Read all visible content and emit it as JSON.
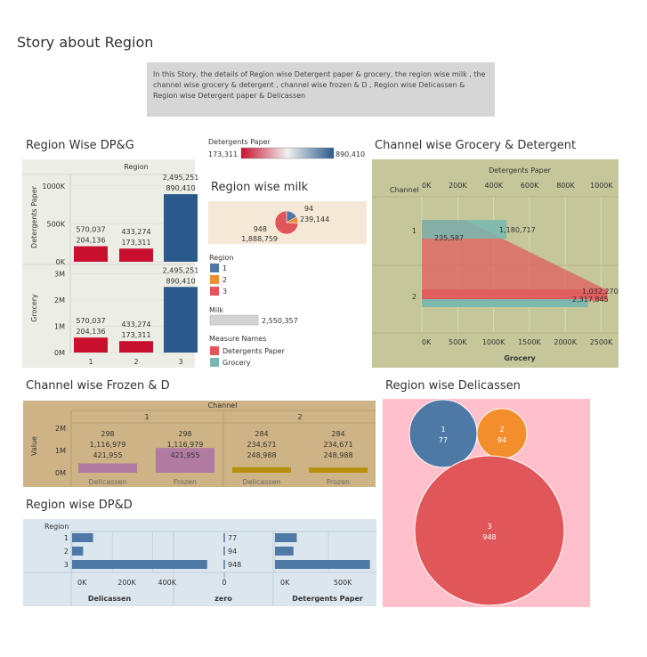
{
  "story": {
    "title": "Story about Region",
    "description": "In this Story,  the details of Region wise Detergent paper & grocery,  the region wise milk , the channel wise grocery & detergent , channel wise frozen & D , Region wise Delicassen &  Region wise Detergent paper & Delicassen"
  },
  "colors": {
    "region1": "#4e79a7",
    "region2": "#f28e2b",
    "region3": "#e15759",
    "grocery": "#76b7b2",
    "frozen": "#b07aa1",
    "bar_gold": "#b8900f",
    "dp_low": "#c8102e",
    "dp_high": "#2a5a8c"
  },
  "dpg": {
    "title": "Region Wise DP&G",
    "header": "Region",
    "chart_data": {
      "type": "bar",
      "categories": [
        "1",
        "2",
        "3"
      ],
      "series": [
        {
          "name": "Detergents Paper",
          "values": [
            204136,
            173311,
            890410
          ],
          "labels": [
            "570,037\n204,136",
            "433,274\n173,311",
            "2,495,251\n890,410"
          ]
        },
        {
          "name": "Grocery",
          "values": [
            570037,
            433274,
            2495251
          ],
          "labels": [
            "570,037\n204,136",
            "433,274\n173,311",
            "2,495,251\n890,410"
          ]
        }
      ],
      "dp_ticks": [
        "0K",
        "500K",
        "1000K"
      ],
      "dp_tick_values": [
        0,
        500000,
        1000000
      ],
      "dp_ylim": [
        0,
        1150000
      ],
      "groc_ticks": [
        "0M",
        "1M",
        "2M",
        "3M"
      ],
      "groc_tick_values": [
        0,
        1000000,
        2000000,
        3000000
      ],
      "groc_ylim": [
        0,
        3250000
      ]
    }
  },
  "dp_legend": {
    "title": "Detergents Paper",
    "min": "173,311",
    "max": "890,410"
  },
  "milk": {
    "title": "Region wise milk",
    "chart_data": {
      "type": "pie",
      "categories": [
        "1",
        "2",
        "3"
      ],
      "values": [
        422454,
        239144,
        1888759
      ],
      "labels": [
        "94",
        "239,144",
        "948",
        "1,888,759"
      ]
    }
  },
  "legends": {
    "region_title": "Region",
    "regions": [
      "1",
      "2",
      "3"
    ],
    "milk_title": "Milk",
    "milk_value": "2,550,357",
    "measure_title": "Measure Names",
    "measures": [
      "Detergents Paper",
      "Grocery"
    ]
  },
  "cgd": {
    "title": "Channel wise Grocery & Detergent",
    "top_axis_title": "Detergents Paper",
    "bottom_axis_title": "Grocery",
    "row_header": "Channel",
    "chart_data": {
      "type": "bar",
      "categories": [
        "1",
        "2"
      ],
      "series": [
        {
          "name": "Detergents Paper",
          "values": [
            235587,
            1032270
          ],
          "labels": [
            "235,587",
            "1,032,270"
          ]
        },
        {
          "name": "Grocery",
          "values": [
            1180717,
            2317845
          ],
          "labels": [
            "1,180,717",
            "2,317,845"
          ]
        }
      ],
      "top_ticks": [
        "0K",
        "200K",
        "400K",
        "600K",
        "800K",
        "1000K"
      ],
      "top_tick_values": [
        0,
        200000,
        400000,
        600000,
        800000,
        1000000
      ],
      "bottom_ticks": [
        "0K",
        "500K",
        "1000K",
        "1500K",
        "2000K",
        "2500K"
      ],
      "bottom_tick_values": [
        0,
        500000,
        1000000,
        1500000,
        2000000,
        2500000
      ],
      "top_xlim": [
        0,
        1090000
      ],
      "bottom_xlim": [
        0,
        2730000
      ]
    }
  },
  "cfd": {
    "title": "Channel wise Frozen & D",
    "header": "Channel",
    "ylabel": "Value",
    "chart_data": {
      "type": "bar",
      "channels": [
        "1",
        "2"
      ],
      "categories": [
        "Delicassen",
        "Frozen",
        "Delicassen",
        "Frozen"
      ],
      "values": [
        421955,
        1116979,
        248988,
        234671
      ],
      "labels": [
        "298\n1,116,979\n421,955",
        "298\n1,116,979\n421,955",
        "284\n234,671\n248,988",
        "284\n234,671\n248,988"
      ],
      "ticks": [
        "0M",
        "1M",
        "2M"
      ],
      "tick_values": [
        0,
        1000000,
        2000000
      ],
      "ylim": [
        0,
        2250000
      ]
    }
  },
  "rdel": {
    "title": "Region wise Delicassen",
    "chart_data": {
      "type": "bubble",
      "categories": [
        "1",
        "2",
        "3"
      ],
      "values": [
        77,
        94,
        948
      ]
    }
  },
  "rdpd": {
    "title": "Region wise DP&D",
    "row_header": "Region",
    "chart_data": {
      "type": "bar",
      "categories": [
        "1",
        "2",
        "3"
      ],
      "series": [
        {
          "name": "Delicassen",
          "values": [
            104327,
            54506,
            670943
          ],
          "ticks": [
            "0K",
            "200K",
            "400K"
          ],
          "tick_values": [
            0,
            200000,
            400000
          ],
          "xlim": [
            0,
            495000
          ]
        },
        {
          "name": "zero",
          "values": [
            0,
            0,
            0
          ],
          "labels": [
            "77",
            "94",
            "948"
          ],
          "ticks": [
            "0"
          ],
          "tick_values": [
            0
          ]
        },
        {
          "name": "Detergents Paper",
          "values": [
            204136,
            173311,
            890410
          ],
          "ticks": [
            "0K",
            "500K"
          ],
          "tick_values": [
            0,
            500000
          ],
          "xlim": [
            0,
            935000
          ]
        }
      ]
    }
  }
}
